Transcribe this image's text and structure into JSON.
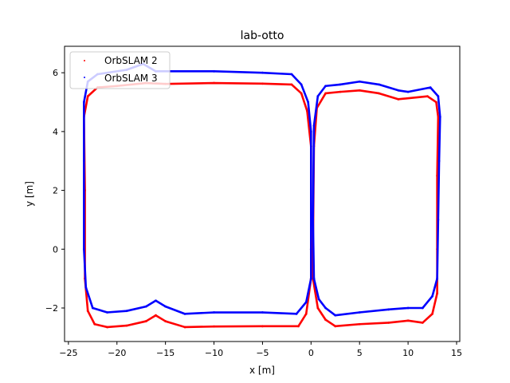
{
  "chart_data": {
    "type": "scatter",
    "title": "lab-otto",
    "xlabel": "x [m]",
    "ylabel": "y [m]",
    "xlim": [
      -25.4,
      15.33
    ],
    "ylim": [
      -3.14,
      6.9
    ],
    "xticks": [
      -25,
      -20,
      -15,
      -10,
      -5,
      0,
      5,
      10,
      15
    ],
    "xtick_labels": [
      "−25",
      "−20",
      "−15",
      "−10",
      "−5",
      "0",
      "5",
      "10",
      "15"
    ],
    "yticks": [
      -2,
      0,
      2,
      4,
      6
    ],
    "ytick_labels": [
      "−2",
      "0",
      "2",
      "4",
      "6"
    ],
    "grid": false,
    "legend_position": "top-left",
    "series": [
      {
        "name": "OrbSLAM 2",
        "color": "#ff0000",
        "points": [
          [
            0,
            -1
          ],
          [
            -0.5,
            -2.2
          ],
          [
            -1.3,
            -2.62
          ],
          [
            -5,
            -2.62
          ],
          [
            -10,
            -2.63
          ],
          [
            -13,
            -2.65
          ],
          [
            -15,
            -2.45
          ],
          [
            -16,
            -2.25
          ],
          [
            -17,
            -2.45
          ],
          [
            -19,
            -2.6
          ],
          [
            -21,
            -2.65
          ],
          [
            -22.3,
            -2.55
          ],
          [
            -23,
            -2.1
          ],
          [
            -23.3,
            -1
          ],
          [
            -23.3,
            2
          ],
          [
            -23.4,
            4.5
          ],
          [
            -23,
            5.2
          ],
          [
            -22,
            5.5
          ],
          [
            -20,
            5.55
          ],
          [
            -17,
            5.65
          ],
          [
            -15,
            5.62
          ],
          [
            -10,
            5.65
          ],
          [
            -5,
            5.63
          ],
          [
            -2,
            5.6
          ],
          [
            -1,
            5.3
          ],
          [
            -0.4,
            4.7
          ],
          [
            0,
            3.5
          ],
          [
            0,
            0
          ],
          [
            0,
            -1
          ],
          [
            0.2,
            -1
          ],
          [
            0.7,
            -2
          ],
          [
            1.5,
            -2.4
          ],
          [
            2.5,
            -2.62
          ],
          [
            5,
            -2.55
          ],
          [
            8,
            -2.5
          ],
          [
            10,
            -2.43
          ],
          [
            11.5,
            -2.5
          ],
          [
            12.5,
            -2.2
          ],
          [
            13,
            -1.5
          ],
          [
            13,
            0
          ],
          [
            13,
            2.5
          ],
          [
            13.1,
            4.5
          ],
          [
            12.9,
            5
          ],
          [
            12,
            5.2
          ],
          [
            9,
            5.1
          ],
          [
            7,
            5.3
          ],
          [
            5,
            5.4
          ],
          [
            3,
            5.35
          ],
          [
            1.5,
            5.3
          ],
          [
            0.6,
            4.8
          ],
          [
            0.3,
            3.5
          ],
          [
            0.2,
            0
          ],
          [
            0.2,
            -1
          ]
        ]
      },
      {
        "name": "OrbSLAM 3",
        "color": "#0000ff",
        "points": [
          [
            0,
            -1
          ],
          [
            -0.5,
            -1.8
          ],
          [
            -1.5,
            -2.2
          ],
          [
            -5,
            -2.15
          ],
          [
            -10,
            -2.15
          ],
          [
            -13,
            -2.2
          ],
          [
            -15,
            -1.95
          ],
          [
            -16,
            -1.75
          ],
          [
            -17,
            -1.95
          ],
          [
            -19,
            -2.1
          ],
          [
            -21,
            -2.15
          ],
          [
            -22.5,
            -2.0
          ],
          [
            -23.2,
            -1.3
          ],
          [
            -23.4,
            0
          ],
          [
            -23.4,
            3
          ],
          [
            -23.4,
            5
          ],
          [
            -23,
            5.7
          ],
          [
            -22,
            5.95
          ],
          [
            -19,
            6.1
          ],
          [
            -17.3,
            6.3
          ],
          [
            -16,
            6.05
          ],
          [
            -10,
            6.05
          ],
          [
            -5,
            6.0
          ],
          [
            -2,
            5.95
          ],
          [
            -1,
            5.6
          ],
          [
            -0.3,
            5.0
          ],
          [
            0,
            4
          ],
          [
            0,
            0
          ],
          [
            0,
            -1
          ],
          [
            0.3,
            -1
          ],
          [
            0.8,
            -1.7
          ],
          [
            1.5,
            -2.0
          ],
          [
            2.5,
            -2.25
          ],
          [
            5,
            -2.15
          ],
          [
            8,
            -2.05
          ],
          [
            10,
            -2.0
          ],
          [
            11.5,
            -2.0
          ],
          [
            12.5,
            -1.6
          ],
          [
            13,
            -1
          ],
          [
            13.1,
            1
          ],
          [
            13.2,
            3
          ],
          [
            13.3,
            4.5
          ],
          [
            13.1,
            5.2
          ],
          [
            12.3,
            5.5
          ],
          [
            10,
            5.35
          ],
          [
            9,
            5.4
          ],
          [
            7,
            5.6
          ],
          [
            5,
            5.7
          ],
          [
            3,
            5.6
          ],
          [
            1.5,
            5.55
          ],
          [
            0.7,
            5.2
          ],
          [
            0.3,
            4.2
          ],
          [
            0.2,
            1
          ],
          [
            0.3,
            -1
          ]
        ]
      }
    ]
  }
}
